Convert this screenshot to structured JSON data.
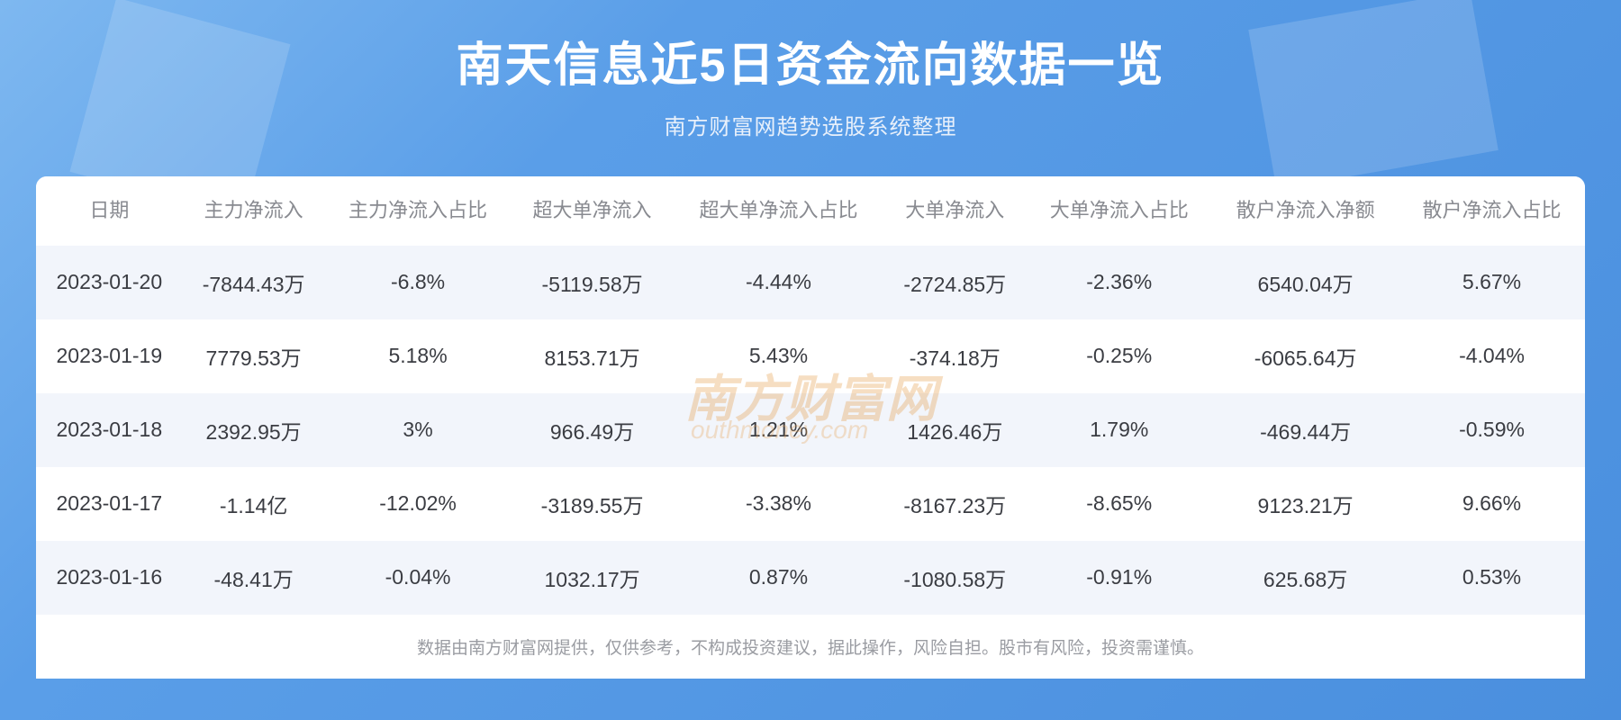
{
  "header": {
    "title": "南天信息近5日资金流向数据一览",
    "subtitle": "南方财富网趋势选股系统整理"
  },
  "watermark": {
    "main": "南方财富网",
    "sub": "outhmoney.com"
  },
  "table": {
    "columns": [
      "日期",
      "主力净流入",
      "主力净流入占比",
      "超大单净流入",
      "超大单净流入占比",
      "大单净流入",
      "大单净流入占比",
      "散户净流入净额",
      "散户净流入占比"
    ],
    "rows": [
      [
        "2023-01-20",
        "-7844.43万",
        "-6.8%",
        "-5119.58万",
        "-4.44%",
        "-2724.85万",
        "-2.36%",
        "6540.04万",
        "5.67%"
      ],
      [
        "2023-01-19",
        "7779.53万",
        "5.18%",
        "8153.71万",
        "5.43%",
        "-374.18万",
        "-0.25%",
        "-6065.64万",
        "-4.04%"
      ],
      [
        "2023-01-18",
        "2392.95万",
        "3%",
        "966.49万",
        "1.21%",
        "1426.46万",
        "1.79%",
        "-469.44万",
        "-0.59%"
      ],
      [
        "2023-01-17",
        "-1.14亿",
        "-12.02%",
        "-3189.55万",
        "-3.38%",
        "-8167.23万",
        "-8.65%",
        "9123.21万",
        "9.66%"
      ],
      [
        "2023-01-16",
        "-48.41万",
        "-0.04%",
        "1032.17万",
        "0.87%",
        "-1080.58万",
        "-0.91%",
        "625.68万",
        "0.53%"
      ]
    ]
  },
  "footer": {
    "disclaimer": "数据由南方财富网提供，仅供参考，不构成投资建议，据此操作，风险自担。股市有风险，投资需谨慎。"
  },
  "styling": {
    "background_gradient_start": "#7eb8f0",
    "background_gradient_mid": "#5a9ee8",
    "background_gradient_end": "#4a8fde",
    "title_color": "#ffffff",
    "title_fontsize": 52,
    "subtitle_color": "#e8f0fb",
    "subtitle_fontsize": 24,
    "header_text_color": "#888a90",
    "header_fontsize": 22,
    "cell_text_color": "#3a3c42",
    "cell_fontsize": 23,
    "row_odd_bg": "#f2f5fb",
    "row_even_bg": "#ffffff",
    "footer_text_color": "#9a9ca2",
    "footer_fontsize": 19,
    "watermark_color": "rgba(230, 160, 80, 0.35)",
    "table_border_radius": 12
  }
}
